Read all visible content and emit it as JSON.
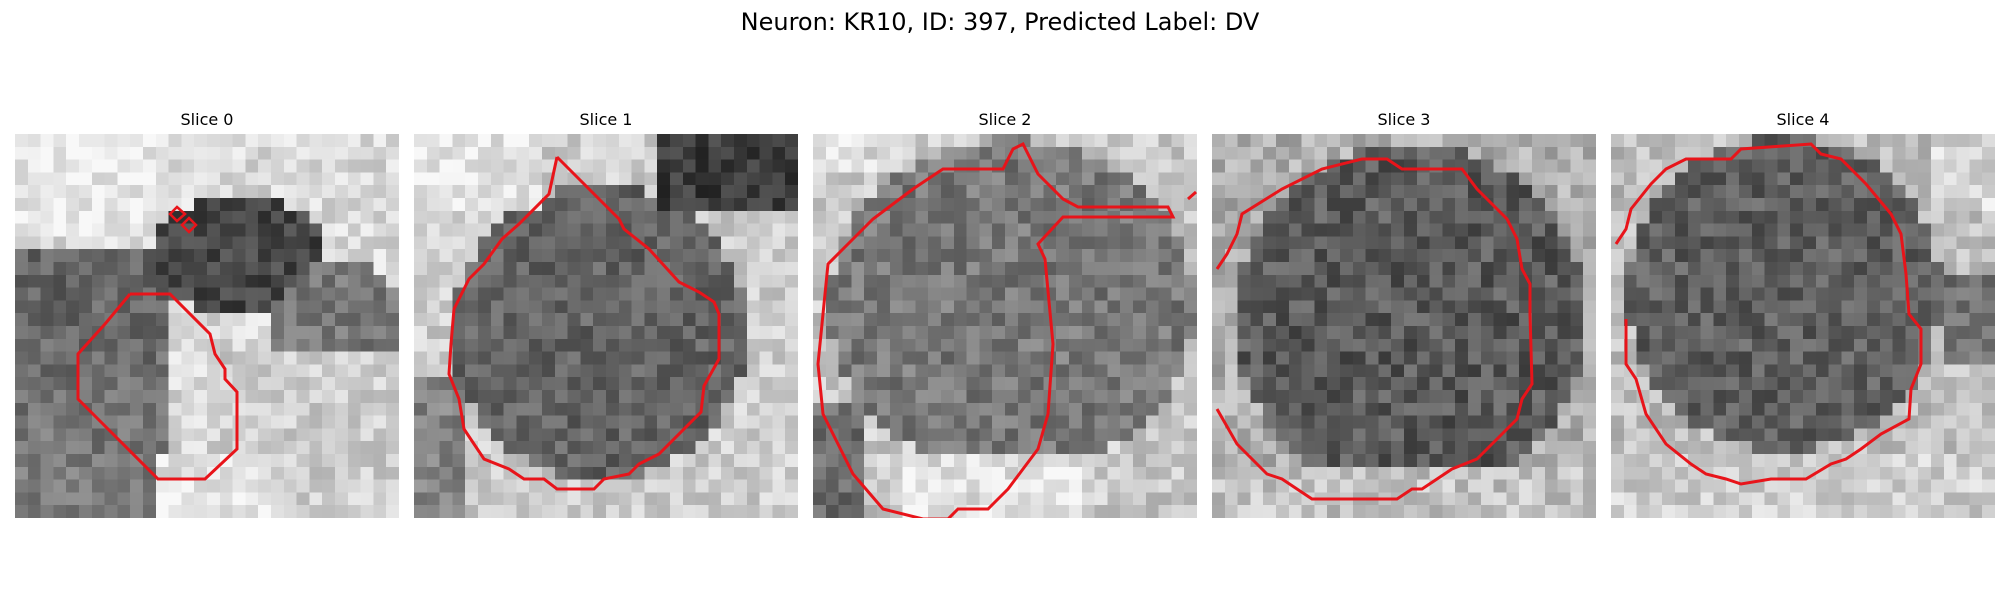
{
  "figure": {
    "title": "Neuron: KR10, ID: 397, Predicted Label: DV"
  },
  "colors": {
    "contour": "#e8141a",
    "background": "#ffffff"
  },
  "panels": [
    {
      "title": "Slice 0"
    },
    {
      "title": "Slice 1"
    },
    {
      "title": "Slice 2"
    },
    {
      "title": "Slice 3"
    },
    {
      "title": "Slice 4"
    }
  ]
}
